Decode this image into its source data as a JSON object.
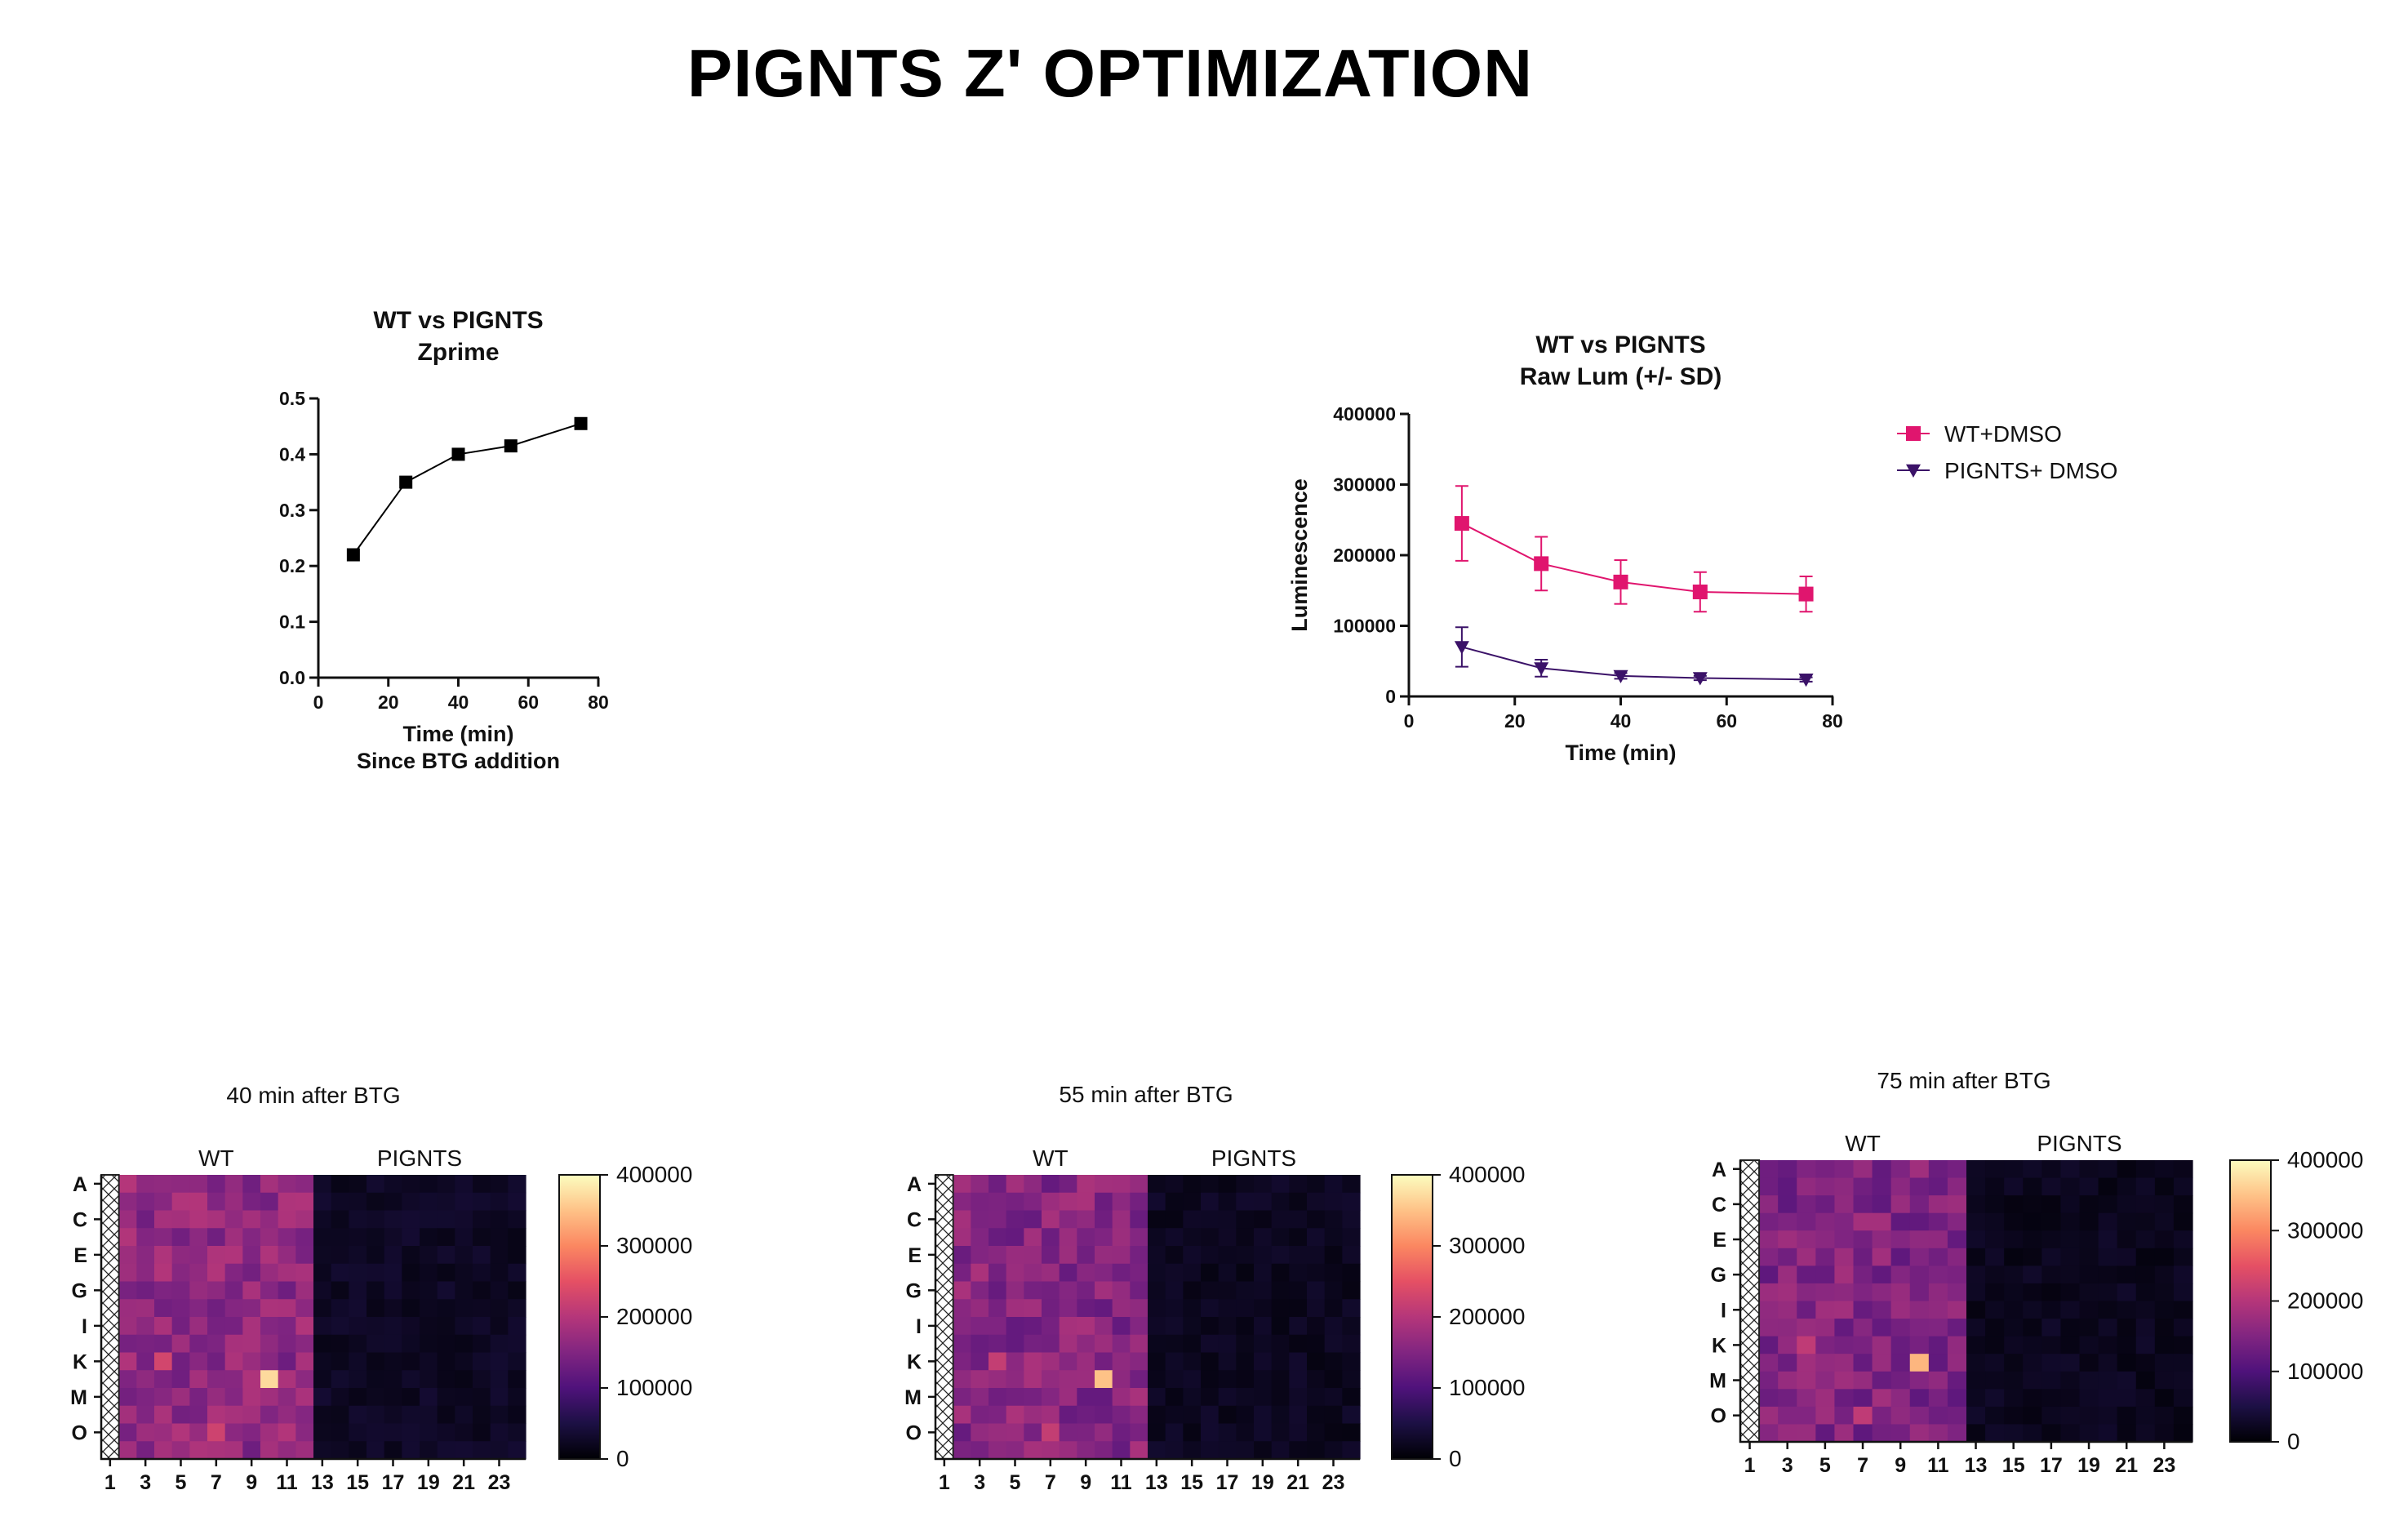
{
  "page_title": "PIGNTS Z' OPTIMIZATION",
  "chart_data": [
    {
      "type": "line",
      "title": "WT vs PIGNTS",
      "subtitle": "Zprime",
      "xlabel": "Time (min)",
      "xlabel2": "Since BTG addition",
      "ylabel": "",
      "xlim": [
        0,
        80
      ],
      "ylim": [
        0,
        0.5
      ],
      "x_ticks": [
        "0",
        "20",
        "40",
        "60",
        "80"
      ],
      "y_ticks": [
        "0.0",
        "0.1",
        "0.2",
        "0.3",
        "0.4",
        "0.5"
      ],
      "series": [
        {
          "marker": "square",
          "color": "#000000",
          "x": [
            10,
            25,
            40,
            55,
            75
          ],
          "y": [
            0.22,
            0.35,
            0.4,
            0.415,
            0.455
          ]
        }
      ],
      "grid": false
    },
    {
      "type": "line",
      "title": "WT vs PIGNTS",
      "subtitle": "Raw Lum (+/- SD)",
      "xlabel": "Time (min)",
      "ylabel": "Luminescence",
      "xlim": [
        0,
        80
      ],
      "ylim": [
        0,
        400000
      ],
      "x_ticks": [
        "0",
        "20",
        "40",
        "60",
        "80"
      ],
      "y_ticks": [
        "0",
        "100000",
        "200000",
        "300000",
        "400000"
      ],
      "legend_position": "right",
      "grid": false,
      "series": [
        {
          "name": "WT+DMSO",
          "marker": "square",
          "color": "#e0156e",
          "x": [
            10,
            25,
            40,
            55,
            75
          ],
          "y": [
            245000,
            188000,
            162000,
            148000,
            145000
          ],
          "sd": [
            53000,
            38000,
            31000,
            28000,
            25000
          ]
        },
        {
          "name": "PIGNTS+ DMSO",
          "marker": "triangle-down",
          "color": "#3b1268",
          "x": [
            10,
            25,
            40,
            55,
            75
          ],
          "y": [
            70000,
            40000,
            29000,
            26000,
            24000
          ],
          "sd": [
            28000,
            12000,
            4000,
            3000,
            3000
          ]
        }
      ]
    },
    {
      "type": "heatmap",
      "title": "40 min after BTG",
      "groups": [
        "WT",
        "PIGNTS"
      ],
      "row_labels": [
        "A",
        "C",
        "E",
        "G",
        "I",
        "K",
        "M",
        "O"
      ],
      "col_labels": [
        "1",
        "3",
        "5",
        "7",
        "9",
        "11",
        "13",
        "15",
        "17",
        "19",
        "21",
        "23"
      ],
      "colorbar_ticks": [
        "0",
        "100000",
        "200000",
        "300000",
        "400000"
      ],
      "range": [
        0,
        400000
      ],
      "colormap": "magma",
      "excluded_column": 1,
      "wt_columns": [
        2,
        12
      ],
      "hotspots": [
        [
          10,
          3,
          230000
        ],
        [
          11,
          9,
          370000
        ],
        [
          14,
          6,
          225000
        ]
      ],
      "wt_level": 165000,
      "pignts_level": 25000
    },
    {
      "type": "heatmap",
      "title": "55 min after BTG",
      "groups": [
        "WT",
        "PIGNTS"
      ],
      "row_labels": [
        "A",
        "C",
        "E",
        "G",
        "I",
        "K",
        "M",
        "O"
      ],
      "col_labels": [
        "1",
        "3",
        "5",
        "7",
        "9",
        "11",
        "13",
        "15",
        "17",
        "19",
        "21",
        "23"
      ],
      "colorbar_ticks": [
        "0",
        "100000",
        "200000",
        "300000",
        "400000"
      ],
      "range": [
        0,
        400000
      ],
      "colormap": "magma",
      "excluded_column": 1,
      "wt_columns": [
        2,
        12
      ],
      "hotspots": [
        [
          10,
          3,
          215000
        ],
        [
          11,
          9,
          350000
        ],
        [
          14,
          6,
          215000
        ]
      ],
      "wt_level": 155000,
      "pignts_level": 22000
    },
    {
      "type": "heatmap",
      "title": "75 min after BTG",
      "groups": [
        "WT",
        "PIGNTS"
      ],
      "row_labels": [
        "A",
        "C",
        "E",
        "G",
        "I",
        "K",
        "M",
        "O"
      ],
      "col_labels": [
        "1",
        "3",
        "5",
        "7",
        "9",
        "11",
        "13",
        "15",
        "17",
        "19",
        "21",
        "23"
      ],
      "colorbar_ticks": [
        "0",
        "100000",
        "200000",
        "300000",
        "400000"
      ],
      "range": [
        0,
        400000
      ],
      "colormap": "magma",
      "excluded_column": 1,
      "wt_columns": [
        2,
        12
      ],
      "hotspots": [
        [
          10,
          3,
          210000
        ],
        [
          11,
          9,
          340000
        ],
        [
          14,
          6,
          210000
        ]
      ],
      "wt_level": 150000,
      "pignts_level": 20000
    }
  ]
}
